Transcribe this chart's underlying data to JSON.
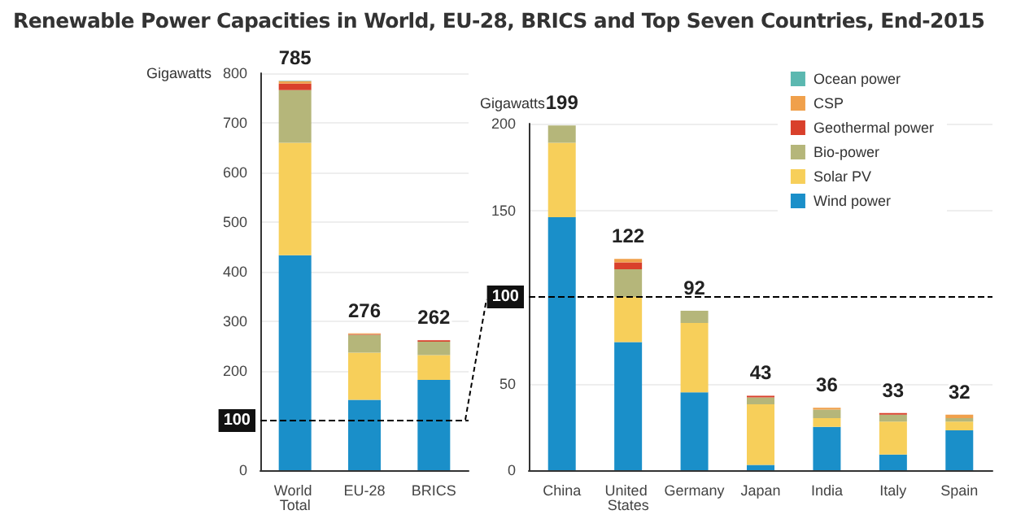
{
  "chart_data": [
    {
      "type": "bar",
      "title": "Renewable Power Capacities in World, EU-28, BRICS and Top Seven Countries, End-2015",
      "ylabel": "Gigawatts",
      "categories": [
        "World Total",
        "EU-28",
        "BRICS"
      ],
      "stacked": true,
      "ylim": [
        0,
        800
      ],
      "yticks": [
        0,
        200,
        300,
        400,
        500,
        600,
        700,
        800
      ],
      "grid": "y",
      "legend": false,
      "series": [
        {
          "color": "#1a8fc9",
          "values": [
            433,
            142,
            182
          ]
        },
        {
          "color": "#f7cf5a",
          "values": [
            227,
            95,
            50
          ]
        },
        {
          "color": "#b5b67a",
          "values": [
            106,
            36,
            27
          ]
        },
        {
          "color": "#d9402b",
          "values": [
            13,
            1,
            3
          ]
        },
        {
          "color": "#f0a04b",
          "values": [
            5,
            2,
            0
          ]
        },
        {
          "color": "#5bb8b0",
          "values": [
            1,
            0,
            0
          ]
        }
      ],
      "totals": [
        "785",
        "276",
        "262"
      ],
      "ref_lines": [
        {
          "axis": "y",
          "value": 100,
          "label": "100",
          "color": "#000000",
          "line_style": "dashed"
        }
      ]
    },
    {
      "type": "bar",
      "ylabel": "Gigawatts",
      "categories": [
        "China",
        "United States",
        "Germany",
        "Japan",
        "India",
        "Italy",
        "Spain"
      ],
      "stacked": true,
      "ylim": [
        0,
        200
      ],
      "yticks": [
        0,
        50,
        150,
        200
      ],
      "grid": "y",
      "legend": "top right",
      "series": [
        {
          "name": "Wind power",
          "color": "#1a8fc9",
          "values": [
            146,
            74,
            45,
            3,
            25,
            9,
            23
          ]
        },
        {
          "name": "Solar PV",
          "color": "#f7cf5a",
          "values": [
            43,
            26,
            40,
            35,
            5,
            19,
            5
          ]
        },
        {
          "name": "Bio-power",
          "color": "#b5b67a",
          "values": [
            10,
            16,
            7,
            4,
            5,
            4,
            2
          ]
        },
        {
          "name": "Geothermal power",
          "color": "#d9402b",
          "values": [
            0,
            4,
            0,
            1,
            0,
            1,
            0
          ]
        },
        {
          "name": "CSP",
          "color": "#f0a04b",
          "values": [
            0,
            2,
            0,
            0,
            1,
            0,
            2
          ]
        },
        {
          "name": "Ocean power",
          "color": "#5bb8b0",
          "values": [
            0,
            0,
            0,
            0,
            0,
            0,
            0
          ]
        }
      ],
      "totals": [
        "199",
        "122",
        "92",
        "43",
        "36",
        "33",
        "32"
      ],
      "ref_lines": [
        {
          "axis": "y",
          "value": 100,
          "label": "100",
          "color": "#000000",
          "line_style": "dashed"
        }
      ]
    }
  ]
}
